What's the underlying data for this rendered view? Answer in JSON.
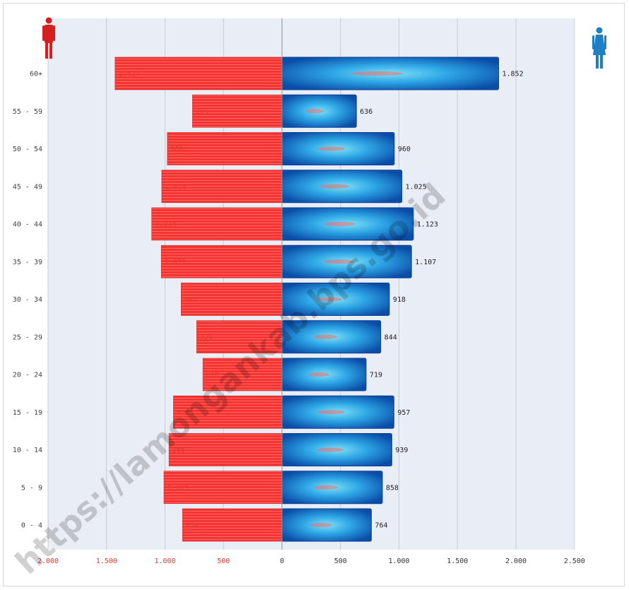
{
  "chart_data": {
    "type": "bar",
    "orientation": "horizontal-population-pyramid",
    "categories": [
      "60+",
      "55 - 59",
      "50 - 54",
      "45 - 49",
      "40 - 44",
      "35 - 39",
      "30 - 34",
      "25 - 29",
      "20 - 24",
      "15 - 19",
      "10 - 14",
      "5 - 9",
      "0 - 4"
    ],
    "series": [
      {
        "color": "#f0312f",
        "values": [
          1427,
          765,
          980,
          1028,
          1114,
          1032,
          862,
          729,
          676,
          928,
          966,
          1009,
          850
        ],
        "labels": [
          "1.427",
          "765",
          "980",
          "1.028",
          "1.114",
          "1.032",
          "862",
          "729",
          "676",
          "928",
          "966",
          "1.009",
          "850"
        ]
      },
      {
        "color": "#1565c0",
        "values": [
          1852,
          636,
          960,
          1025,
          1123,
          1107,
          918,
          844,
          719,
          957,
          939,
          858,
          764
        ],
        "labels": [
          "1.852",
          "636",
          "960",
          "1.025",
          "1.123",
          "1.107",
          "918",
          "844",
          "719",
          "957",
          "939",
          "858",
          "764"
        ]
      }
    ],
    "xlim": [
      -2000,
      2500
    ],
    "x_ticks": [
      -2000,
      -1500,
      -1000,
      -500,
      0,
      500,
      1000,
      1500,
      2000,
      2500
    ],
    "x_tick_labels": [
      "2.000",
      "1.500",
      "1.000",
      "500",
      "0",
      "500",
      "1.000",
      "1.500",
      "2.000",
      "2.500"
    ],
    "grid": "vertical",
    "title": "",
    "xlabel": "",
    "ylabel": ""
  },
  "icons": {
    "left": "male-figure-icon",
    "right": "female-figure-icon"
  },
  "watermark": "https://lamongankab.bps.go.id",
  "colors": {
    "plot_background": "#e9edf5",
    "gridline": "#c8cbd4",
    "male_label": "#e53935",
    "female_label": "#222222"
  }
}
